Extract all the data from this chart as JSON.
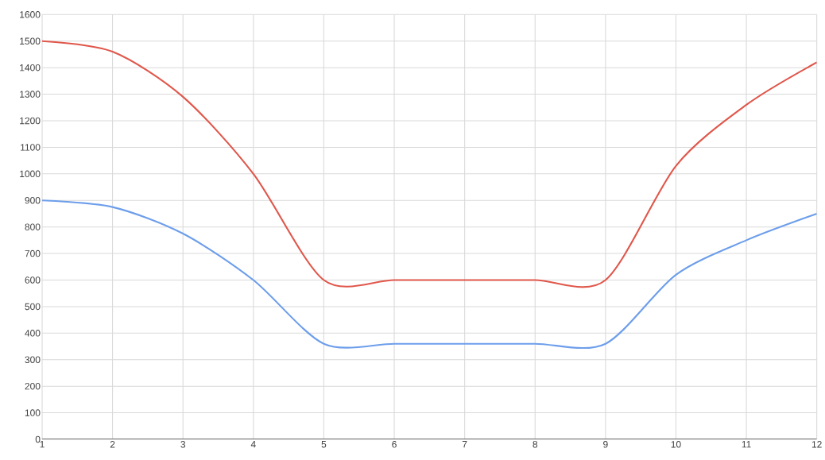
{
  "chart_data": {
    "type": "line",
    "x": [
      1,
      2,
      3,
      4,
      5,
      6,
      7,
      8,
      9,
      10,
      11,
      12
    ],
    "series": [
      {
        "color": "#e0574b",
        "values": [
          1500,
          1460,
          1290,
          1000,
          600,
          600,
          600,
          600,
          600,
          1030,
          1260,
          1420
        ]
      },
      {
        "color": "#6d9eeb",
        "values": [
          900,
          875,
          775,
          600,
          360,
          360,
          360,
          360,
          360,
          620,
          750,
          850
        ]
      }
    ],
    "xlim": [
      1,
      12
    ],
    "xticks": [
      1,
      2,
      3,
      4,
      5,
      6,
      7,
      8,
      9,
      10,
      11,
      12
    ],
    "ylim": [
      0,
      1600
    ],
    "yticks": [
      0,
      100,
      200,
      300,
      400,
      500,
      600,
      700,
      800,
      900,
      1000,
      1100,
      1200,
      1300,
      1400,
      1500,
      1600
    ],
    "grid": true,
    "marker": "none",
    "line_style": "solid"
  }
}
